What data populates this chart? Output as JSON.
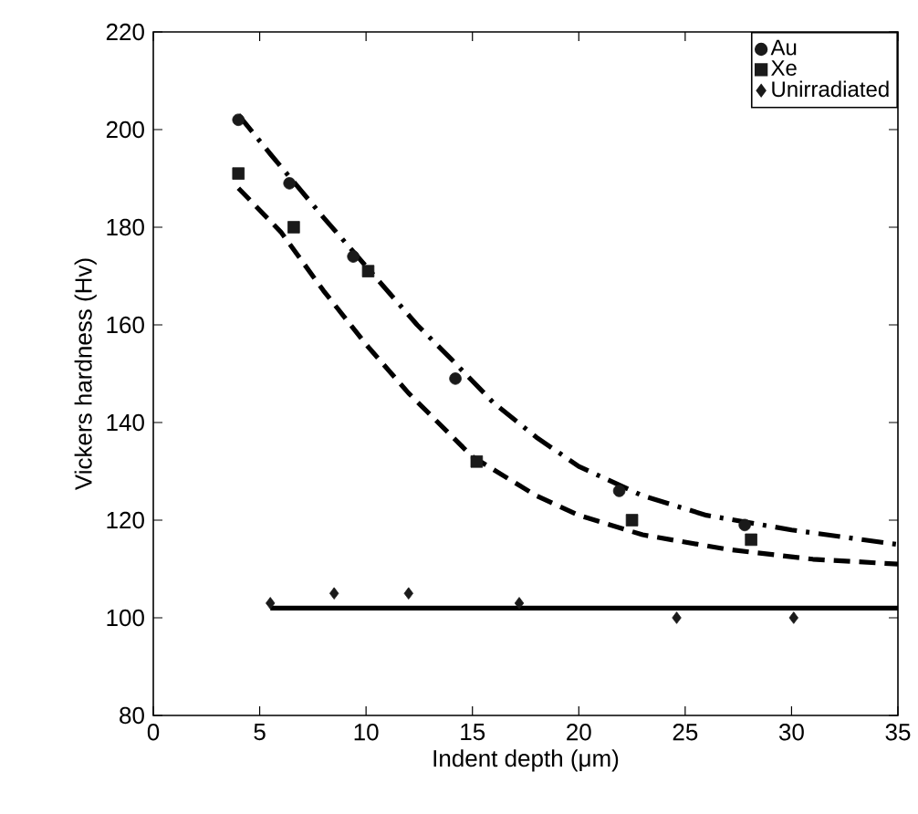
{
  "chart_data": {
    "type": "scatter",
    "xlabel": "Indent depth (μm)",
    "ylabel": "Vickers hardness (Hv)",
    "xlim": [
      0,
      35
    ],
    "ylim": [
      80,
      220
    ],
    "xticks": [
      0,
      5,
      10,
      15,
      20,
      25,
      30,
      35
    ],
    "yticks": [
      80,
      100,
      120,
      140,
      160,
      180,
      200,
      220
    ],
    "legend": "top right",
    "grid": false,
    "series": [
      {
        "name": "Au",
        "marker": "circle",
        "color": "#1a1a1a",
        "x": [
          4,
          6.4,
          9.4,
          14.2,
          21.9,
          27.8
        ],
        "values": [
          202,
          189,
          174,
          149,
          126,
          119
        ]
      },
      {
        "name": "Xe",
        "marker": "square",
        "color": "#1a1a1a",
        "x": [
          4,
          6.6,
          10.1,
          15.2,
          22.5,
          28.1
        ],
        "values": [
          191,
          180,
          171,
          132,
          120,
          116
        ]
      },
      {
        "name": "Unirradiated",
        "marker": "diamond",
        "color": "#1a1a1a",
        "x": [
          5.5,
          8.5,
          12,
          17.2,
          24.6,
          30.1
        ],
        "values": [
          103,
          105,
          105,
          103,
          100,
          100
        ]
      },
      {
        "type": "line",
        "line_style": "dashdot",
        "color": "#000000",
        "x": [
          4,
          5.5,
          8,
          10,
          12.4,
          14,
          16,
          18,
          20,
          23,
          26,
          30,
          35
        ],
        "values": [
          203,
          195,
          182,
          172,
          160,
          153,
          144,
          137,
          131,
          125,
          121,
          118,
          115
        ]
      },
      {
        "type": "line",
        "line_style": "dashed",
        "color": "#000000",
        "x": [
          4,
          6,
          8,
          10,
          12,
          15,
          18,
          20,
          23,
          27,
          31,
          35
        ],
        "values": [
          188,
          179,
          167,
          156,
          146,
          133,
          125,
          121,
          117,
          114,
          112,
          111
        ]
      },
      {
        "type": "line",
        "line_style": "solid",
        "color": "#000000",
        "x": [
          5.5,
          35
        ],
        "values": [
          102,
          102
        ]
      }
    ]
  }
}
